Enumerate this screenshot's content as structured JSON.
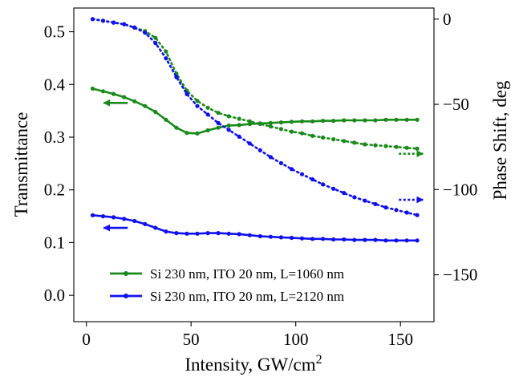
{
  "chart_data": {
    "type": "line",
    "xlabel": "Intensity, GW/cm",
    "xlabel_superscript": "2",
    "ylabel_left": "Transmittance",
    "ylabel_right": "Phase Shift, deg",
    "xlim": [
      -6,
      166
    ],
    "ylim_left": [
      -0.05,
      0.545
    ],
    "ylim_right": [
      -177.5,
      6.5
    ],
    "xticks": [
      0,
      50,
      100,
      150
    ],
    "yticks_left": [
      0.0,
      0.1,
      0.2,
      0.3,
      0.4,
      0.5
    ],
    "yticks_left_labels": [
      "0.0",
      "0.1",
      "0.2",
      "0.3",
      "0.4",
      "0.5"
    ],
    "yticks_right": [
      0,
      -50,
      -100,
      -150
    ],
    "yticks_right_labels": [
      "0",
      "−50",
      "−100",
      "−150"
    ],
    "grid": false,
    "legend_position": "lower-center",
    "colors": {
      "green": "#1a8a1a",
      "blue": "#1010ee"
    },
    "series": [
      {
        "name": "Si 230 nm, ITO 20 nm, L=1060 nm",
        "color": "#1a8a1a",
        "quantity": "transmittance",
        "axis": "left",
        "style": "solid",
        "x": [
          3,
          8,
          13,
          18,
          23,
          28,
          33,
          38,
          43,
          48,
          53,
          58,
          63,
          68,
          73,
          78,
          83,
          88,
          93,
          98,
          103,
          108,
          113,
          118,
          123,
          128,
          133,
          138,
          143,
          148,
          153,
          158
        ],
        "y": [
          0.392,
          0.387,
          0.382,
          0.376,
          0.368,
          0.359,
          0.348,
          0.333,
          0.318,
          0.308,
          0.307,
          0.313,
          0.318,
          0.322,
          0.323,
          0.325,
          0.326,
          0.327,
          0.328,
          0.329,
          0.33,
          0.33,
          0.331,
          0.331,
          0.332,
          0.332,
          0.332,
          0.332,
          0.333,
          0.333,
          0.333,
          0.333
        ]
      },
      {
        "name": "Si 230 nm, ITO 20 nm, L=2120 nm",
        "color": "#1010ee",
        "quantity": "transmittance",
        "axis": "left",
        "style": "solid",
        "x": [
          3,
          8,
          13,
          18,
          23,
          28,
          33,
          38,
          43,
          48,
          53,
          58,
          63,
          68,
          73,
          78,
          83,
          88,
          93,
          98,
          103,
          108,
          113,
          118,
          123,
          128,
          133,
          138,
          143,
          148,
          153,
          158
        ],
        "y": [
          0.152,
          0.15,
          0.148,
          0.145,
          0.141,
          0.135,
          0.128,
          0.121,
          0.118,
          0.117,
          0.117,
          0.118,
          0.118,
          0.117,
          0.116,
          0.114,
          0.112,
          0.111,
          0.11,
          0.109,
          0.108,
          0.107,
          0.107,
          0.106,
          0.106,
          0.105,
          0.105,
          0.105,
          0.104,
          0.104,
          0.104,
          0.104
        ]
      },
      {
        "color": "#1a8a1a",
        "quantity": "phase_shift",
        "axis": "right",
        "style": "dotted",
        "x": [
          3,
          8,
          13,
          18,
          23,
          28,
          33,
          38,
          43,
          48,
          53,
          58,
          63,
          68,
          73,
          78,
          83,
          88,
          93,
          98,
          103,
          108,
          113,
          118,
          123,
          128,
          133,
          138,
          143,
          148,
          153,
          158
        ],
        "y": [
          0,
          -1,
          -2,
          -3,
          -5,
          -7,
          -11,
          -19,
          -32,
          -42,
          -48,
          -52,
          -55,
          -57,
          -58.5,
          -60,
          -61.5,
          -63,
          -64.5,
          -66,
          -67,
          -68.5,
          -69.5,
          -70.5,
          -71.5,
          -72.5,
          -73.5,
          -74,
          -74.5,
          -75,
          -75.5,
          -76
        ]
      },
      {
        "color": "#1010ee",
        "quantity": "phase_shift",
        "axis": "right",
        "style": "dotted",
        "x": [
          3,
          8,
          13,
          18,
          23,
          28,
          33,
          38,
          43,
          48,
          53,
          58,
          63,
          68,
          73,
          78,
          83,
          88,
          93,
          98,
          103,
          108,
          113,
          118,
          123,
          128,
          133,
          138,
          143,
          148,
          153,
          158
        ],
        "y": [
          0,
          -1,
          -2,
          -3,
          -5,
          -8,
          -14,
          -23,
          -34,
          -44,
          -51,
          -56,
          -61,
          -65,
          -69,
          -73,
          -77,
          -81,
          -84.5,
          -88,
          -91,
          -94,
          -97,
          -99.5,
          -102,
          -104.5,
          -106.5,
          -108.5,
          -110.5,
          -112,
          -113.5,
          -115
        ]
      }
    ],
    "annotations": [
      {
        "color": "#1a8a1a",
        "direction": "left",
        "style": "solid",
        "refers_to": "left-axis",
        "at": [
          14,
          0.365
        ]
      },
      {
        "color": "#1010ee",
        "direction": "left",
        "style": "solid",
        "refers_to": "left-axis",
        "at": [
          14,
          0.128
        ]
      },
      {
        "color": "#1a8a1a",
        "direction": "right",
        "style": "dotted",
        "refers_to": "right-axis",
        "at": [
          155,
          -79
        ]
      },
      {
        "color": "#1010ee",
        "direction": "right",
        "style": "dotted",
        "refers_to": "right-axis",
        "at": [
          155,
          -106
        ]
      }
    ]
  }
}
